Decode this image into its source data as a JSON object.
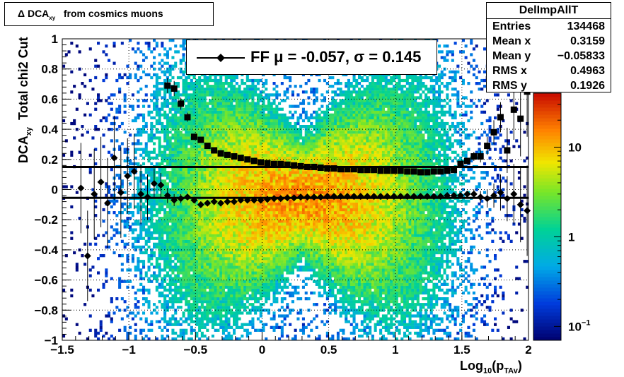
{
  "title_prefix": "Δ DCA",
  "title_sub": "xy",
  "title_suffix": "from cosmics muons",
  "stats": {
    "name": "DelImpAllT",
    "rows": [
      {
        "label": "Entries",
        "value": "134468"
      },
      {
        "label": "Mean x",
        "value": "0.3159"
      },
      {
        "label": "Mean y",
        "value": "−0.05833"
      },
      {
        "label": "RMS x",
        "value": "0.4963"
      },
      {
        "label": "RMS y",
        "value": "0.1926"
      }
    ]
  },
  "legend_text": "FF μ = -0.057, σ =   0.145",
  "xlabel_main": "Log",
  "xlabel_sub1": "10",
  "xlabel_mid": "(p",
  "xlabel_sub2": "TAv",
  "xlabel_end": ")",
  "ylabel_main": "DCA",
  "ylabel_sub": "xy",
  "ylabel_suffix": "Total chi2 Cut",
  "colors": {
    "marker": "#000000",
    "axis": "#000000",
    "grid": "#000000"
  },
  "chart_data": {
    "type": "heatmap",
    "xlim": [
      -1.5,
      2
    ],
    "ylim": [
      -1,
      1
    ],
    "x_ticks": [
      "−1.5",
      "−1",
      "−0.5",
      "0",
      "0.5",
      "1",
      "1.5",
      "2"
    ],
    "x_tick_values": [
      -1.5,
      -1,
      -0.5,
      0,
      0.5,
      1,
      1.5,
      2
    ],
    "y_ticks": [
      "−1",
      "−0.8",
      "−0.6",
      "−0.4",
      "−0.2",
      "0",
      "0.2",
      "0.4",
      "0.6",
      "0.8",
      "1"
    ],
    "y_tick_values": [
      -1,
      -0.8,
      -0.6,
      -0.4,
      -0.2,
      0,
      0.2,
      0.4,
      0.6,
      0.8,
      1
    ],
    "grid": true,
    "z_scale": "log",
    "z_ticks": [
      {
        "label": "10",
        "sup": "−1",
        "value": 0.1
      },
      {
        "label": "1",
        "sup": "",
        "value": 1
      },
      {
        "label": "10",
        "sup": "",
        "value": 10
      }
    ],
    "z_range": [
      0.07,
      40
    ],
    "hlines": [
      0.15,
      -0.055
    ],
    "series": [
      {
        "marker": "diamond",
        "x": [
          -1.36,
          -1.31,
          -1.26,
          -1.21,
          -1.16,
          -1.11,
          -1.06,
          -1.01,
          -0.96,
          -0.91,
          -0.86,
          -0.81,
          -0.76,
          -0.71,
          -0.66,
          -0.61,
          -0.56,
          -0.51,
          -0.46,
          -0.41,
          -0.36,
          -0.31,
          -0.26,
          -0.21,
          -0.16,
          -0.11,
          -0.06,
          -0.01,
          0.04,
          0.09,
          0.14,
          0.19,
          0.24,
          0.29,
          0.34,
          0.39,
          0.44,
          0.49,
          0.54,
          0.59,
          0.64,
          0.69,
          0.74,
          0.79,
          0.84,
          0.89,
          0.94,
          0.99,
          1.04,
          1.09,
          1.14,
          1.19,
          1.24,
          1.29,
          1.34,
          1.39,
          1.44,
          1.49,
          1.54,
          1.59,
          1.64,
          1.69,
          1.74,
          1.79,
          1.84,
          1.89,
          1.94,
          1.99
        ],
        "y": [
          0.01,
          -0.44,
          -0.03,
          0.05,
          -0.09,
          0.21,
          -0.02,
          0.09,
          0.12,
          -0.03,
          -0.05,
          0.04,
          0.03,
          -0.04,
          -0.07,
          -0.06,
          -0.05,
          -0.07,
          -0.1,
          -0.09,
          -0.08,
          -0.09,
          -0.08,
          -0.08,
          -0.07,
          -0.07,
          -0.07,
          -0.07,
          -0.065,
          -0.06,
          -0.06,
          -0.055,
          -0.055,
          -0.05,
          -0.05,
          -0.05,
          -0.05,
          -0.045,
          -0.045,
          -0.045,
          -0.045,
          -0.045,
          -0.045,
          -0.045,
          -0.045,
          -0.045,
          -0.045,
          -0.045,
          -0.045,
          -0.045,
          -0.045,
          -0.045,
          -0.045,
          -0.045,
          -0.045,
          -0.04,
          -0.04,
          -0.04,
          -0.03,
          -0.03,
          -0.05,
          -0.06,
          -0.04,
          -0.02,
          -0.06,
          -0.03,
          -0.1,
          -0.14
        ],
        "err": [
          0.3,
          0.3,
          0.3,
          0.3,
          0.3,
          0.28,
          0.3,
          0.25,
          0.25,
          0.2,
          0.15,
          0.1,
          0.08,
          0.05,
          0.04,
          0.03,
          0.02,
          0.02,
          0.015,
          0.015,
          0.01,
          0.01,
          0.01,
          0.01,
          0.01,
          0.01,
          0.01,
          0.01,
          0.01,
          0.01,
          0.01,
          0.01,
          0.01,
          0.01,
          0.01,
          0.01,
          0.01,
          0.01,
          0.01,
          0.01,
          0.01,
          0.01,
          0.01,
          0.01,
          0.01,
          0.01,
          0.01,
          0.01,
          0.01,
          0.01,
          0.01,
          0.01,
          0.01,
          0.01,
          0.01,
          0.01,
          0.015,
          0.02,
          0.02,
          0.03,
          0.04,
          0.06,
          0.08,
          0.12,
          0.15,
          0.2,
          0.25,
          0.3
        ]
      },
      {
        "marker": "square",
        "x": [
          -0.71,
          -0.66,
          -0.61,
          -0.56,
          -0.51,
          -0.46,
          -0.41,
          -0.36,
          -0.31,
          -0.26,
          -0.21,
          -0.16,
          -0.11,
          -0.06,
          -0.01,
          0.04,
          0.09,
          0.14,
          0.19,
          0.24,
          0.29,
          0.34,
          0.39,
          0.44,
          0.49,
          0.54,
          0.59,
          0.64,
          0.69,
          0.74,
          0.79,
          0.84,
          0.89,
          0.94,
          0.99,
          1.04,
          1.09,
          1.14,
          1.19,
          1.24,
          1.29,
          1.34,
          1.39,
          1.44,
          1.49,
          1.54,
          1.59,
          1.64,
          1.69,
          1.74,
          1.79,
          1.84,
          1.89,
          1.94,
          1.99
        ],
        "y": [
          0.69,
          0.67,
          0.57,
          0.48,
          0.35,
          0.33,
          0.29,
          0.26,
          0.24,
          0.23,
          0.22,
          0.21,
          0.2,
          0.19,
          0.18,
          0.175,
          0.17,
          0.17,
          0.165,
          0.16,
          0.155,
          0.15,
          0.15,
          0.145,
          0.14,
          0.14,
          0.135,
          0.135,
          0.135,
          0.13,
          0.13,
          0.13,
          0.125,
          0.125,
          0.125,
          0.125,
          0.12,
          0.12,
          0.115,
          0.115,
          0.12,
          0.12,
          0.125,
          0.13,
          0.17,
          0.19,
          0.22,
          0.22,
          0.29,
          0.38,
          0.48,
          0.26,
          0.53,
          0.47,
          0.65
        ],
        "err": [
          0.05,
          0.05,
          0.04,
          0.03,
          0.02,
          0.02,
          0.015,
          0.015,
          0.01,
          0.01,
          0.01,
          0.01,
          0.01,
          0.01,
          0.01,
          0.01,
          0.01,
          0.01,
          0.01,
          0.01,
          0.01,
          0.01,
          0.01,
          0.01,
          0.01,
          0.01,
          0.01,
          0.01,
          0.01,
          0.01,
          0.01,
          0.01,
          0.01,
          0.01,
          0.01,
          0.01,
          0.01,
          0.01,
          0.01,
          0.01,
          0.01,
          0.01,
          0.015,
          0.015,
          0.02,
          0.02,
          0.03,
          0.04,
          0.06,
          0.08,
          0.1,
          0.15,
          0.2,
          0.25,
          0.3
        ]
      }
    ]
  }
}
